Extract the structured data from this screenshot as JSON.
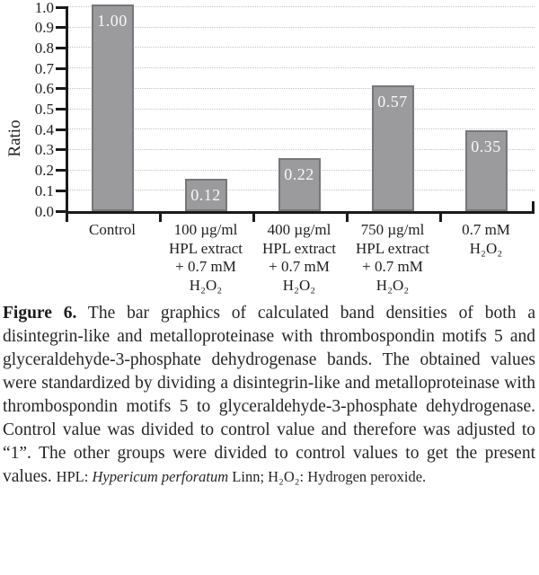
{
  "chart_data": {
    "type": "bar",
    "title": "",
    "xlabel": "",
    "ylabel": "Ratio",
    "ylim": [
      0,
      1.0
    ],
    "ytick_step": 0.1,
    "ytick_labels": [
      "1.0",
      "0.9",
      "0.8",
      "0.7",
      "0.6",
      "0.5",
      "0.4",
      "0.3",
      "0.2",
      "0.1",
      "0.0"
    ],
    "grid": "horizontal-dotted",
    "legend": "none",
    "categories": [
      "Control",
      "100 µg/ml HPL extract + 0.7 mM H₂O₂",
      "400 µg/ml HPL extract + 0.7 mM H₂O₂",
      "750 µg/ml HPL extract + 0.7 mM H₂O₂",
      "0.7 mM H₂O₂"
    ],
    "category_lines": [
      [
        "Control"
      ],
      [
        "100 µg/ml",
        "HPL extract",
        "+ 0.7 mM",
        "H₂O₂"
      ],
      [
        "400 µg/ml",
        "HPL extract",
        "+ 0.7 mM",
        "H₂O₂"
      ],
      [
        "750 µg/ml",
        "HPL extract",
        "+ 0.7 mM",
        "H₂O₂"
      ],
      [
        "0.7 mM",
        "H₂O₂"
      ]
    ],
    "values": [
      1.0,
      0.12,
      0.22,
      0.57,
      0.35
    ],
    "value_labels": [
      "1.00",
      "0.12",
      "0.22",
      "0.57",
      "0.35"
    ],
    "display_heights": [
      1.015,
      0.157,
      0.262,
      0.616,
      0.397
    ],
    "bar_color": "#9b9b9d",
    "bar_border_color": "#77777b",
    "value_label_color": "#f7f7f7",
    "axis_color": "#1b1b1b",
    "gridline_color": "#c3c3c3"
  },
  "caption": {
    "fig_label": "Figure 6.",
    "body": " The bar graphics of calculated band densities of both a disintegrin-like and metalloproteinase with thrombospondin motifs 5 and glyceraldehyde-3-phosphate dehydrogenase bands. The obtained values were standardized by dividing a disintegrin-like and metalloproteinase with thrombospondin motifs 5 to glyceraldehyde-3-phosphate dehydrogenase. Control value was divided to control value and therefore was adjusted to “1”. The other groups were divided to control values to get the present values. ",
    "hpl_prefix": "HPL: ",
    "hpl_species": "Hypericum perforatum",
    "hpl_suffix": " Linn; ",
    "h2o2_def": "H₂O₂: Hydrogen peroxide."
  }
}
